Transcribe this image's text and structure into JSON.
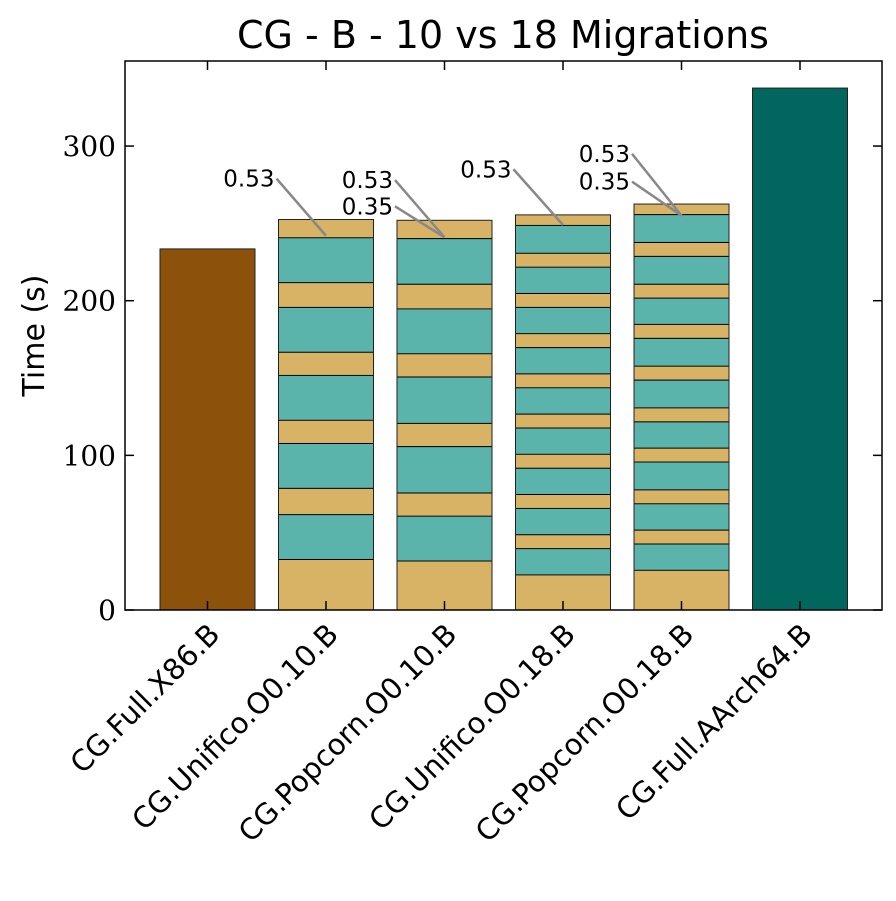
{
  "chart_data": {
    "type": "bar",
    "title": "CG - B - 10 vs 18 Migrations",
    "ylabel": "Time (s)",
    "xlabel": "",
    "ylim": [
      0,
      355
    ],
    "yticks": [
      0,
      100,
      200,
      300
    ],
    "grid": false,
    "categories": [
      "CG.Full.X86.B",
      "CG.Unifico.O0.10.B",
      "CG.Popcorn.O0.10.B",
      "CG.Unifico.O0.18.B",
      "CG.Popcorn.O0.18.B",
      "CG.Full.AArch64.B"
    ],
    "colors": {
      "x86": "#8c510a",
      "aarch64": "#01665e",
      "x86_segment": "#d8b365",
      "aarch64_segment": "#5ab4ac"
    },
    "bars": [
      {
        "category": "CG.Full.X86.B",
        "total": 233.5,
        "color": "x86"
      },
      {
        "category": "CG.Unifico.O0.10.B",
        "segment_boundaries": [
          33,
          62,
          79,
          108,
          123,
          152,
          167,
          196,
          212,
          241,
          252.5
        ],
        "start_color": "x86_segment"
      },
      {
        "category": "CG.Popcorn.O0.10.B",
        "segment_boundaries": [
          32,
          61,
          76,
          106,
          121,
          151,
          166,
          195,
          211,
          240.5,
          252
        ],
        "start_color": "x86_segment"
      },
      {
        "category": "CG.Unifico.O0.18.B",
        "segment_boundaries": [
          23,
          40,
          49,
          66,
          75,
          92,
          101,
          118,
          127,
          144,
          153,
          170,
          179,
          196,
          205,
          222,
          231,
          249,
          255.5
        ],
        "start_color": "x86_segment"
      },
      {
        "category": "CG.Popcorn.O0.18.B",
        "segment_boundaries": [
          26,
          43,
          52,
          69,
          78,
          96,
          105,
          122,
          131,
          149,
          158,
          176,
          185,
          202,
          211,
          229,
          238,
          256,
          262.5
        ],
        "start_color": "x86_segment"
      },
      {
        "category": "CG.Full.AArch64.B",
        "total": 337.5,
        "color": "aarch64"
      }
    ],
    "annotations": [
      {
        "text": "0.53",
        "bar_index": 1,
        "point_value": 242,
        "label_value": 279
      },
      {
        "text": "0.53",
        "bar_index": 2,
        "point_value": 241,
        "label_value": 278
      },
      {
        "text": "0.35",
        "bar_index": 2,
        "point_value": 241,
        "label_value": 261
      },
      {
        "text": "0.53",
        "bar_index": 3,
        "point_value": 249,
        "label_value": 285
      },
      {
        "text": "0.53",
        "bar_index": 4,
        "point_value": 255,
        "label_value": 295
      },
      {
        "text": "0.35",
        "bar_index": 4,
        "point_value": 255,
        "label_value": 277
      }
    ]
  }
}
